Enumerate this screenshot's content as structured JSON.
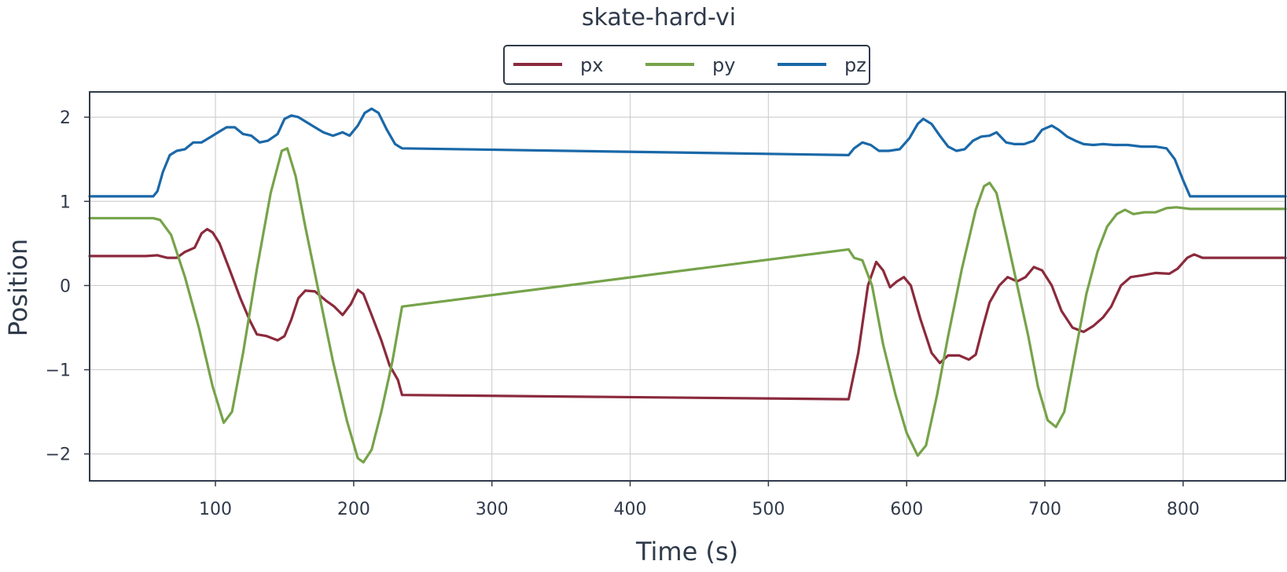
{
  "chart_data": {
    "type": "line",
    "title": "skate-hard-vi",
    "xlabel": "Time (s)",
    "ylabel": "Position",
    "xlim": [
      9,
      874
    ],
    "ylim": [
      -2.32,
      2.3
    ],
    "xticks": [
      100,
      200,
      300,
      400,
      500,
      600,
      700,
      800
    ],
    "xtick_labels": [
      "100",
      "200",
      "300",
      "400",
      "500",
      "600",
      "700",
      "800"
    ],
    "yticks": [
      -2,
      -1,
      0,
      1,
      2
    ],
    "ytick_labels": [
      "−2",
      "−1",
      "0",
      "1",
      "2"
    ],
    "grid": true,
    "legend": {
      "position": "top-center",
      "entries": [
        "px",
        "py",
        "pz"
      ]
    },
    "series": [
      {
        "name": "px",
        "color": "#8b2a3c",
        "points": [
          [
            9,
            0.35
          ],
          [
            50,
            0.35
          ],
          [
            58,
            0.36
          ],
          [
            65,
            0.33
          ],
          [
            72,
            0.33
          ],
          [
            78,
            0.4
          ],
          [
            85,
            0.45
          ],
          [
            90,
            0.62
          ],
          [
            94,
            0.67
          ],
          [
            98,
            0.63
          ],
          [
            103,
            0.5
          ],
          [
            110,
            0.2
          ],
          [
            118,
            -0.15
          ],
          [
            125,
            -0.42
          ],
          [
            130,
            -0.58
          ],
          [
            137,
            -0.6
          ],
          [
            145,
            -0.65
          ],
          [
            150,
            -0.6
          ],
          [
            155,
            -0.4
          ],
          [
            160,
            -0.15
          ],
          [
            165,
            -0.06
          ],
          [
            172,
            -0.07
          ],
          [
            180,
            -0.18
          ],
          [
            186,
            -0.25
          ],
          [
            192,
            -0.35
          ],
          [
            198,
            -0.22
          ],
          [
            203,
            -0.05
          ],
          [
            207,
            -0.1
          ],
          [
            213,
            -0.35
          ],
          [
            220,
            -0.65
          ],
          [
            226,
            -0.95
          ],
          [
            232,
            -1.12
          ],
          [
            235,
            -1.3
          ],
          [
            558,
            -1.35
          ],
          [
            565,
            -0.8
          ],
          [
            572,
            0.0
          ],
          [
            578,
            0.28
          ],
          [
            583,
            0.18
          ],
          [
            588,
            -0.02
          ],
          [
            593,
            0.05
          ],
          [
            598,
            0.1
          ],
          [
            603,
            0.0
          ],
          [
            610,
            -0.4
          ],
          [
            618,
            -0.8
          ],
          [
            624,
            -0.92
          ],
          [
            630,
            -0.83
          ],
          [
            638,
            -0.83
          ],
          [
            645,
            -0.88
          ],
          [
            650,
            -0.82
          ],
          [
            655,
            -0.5
          ],
          [
            660,
            -0.2
          ],
          [
            667,
            0.0
          ],
          [
            673,
            0.1
          ],
          [
            680,
            0.05
          ],
          [
            686,
            0.1
          ],
          [
            692,
            0.22
          ],
          [
            698,
            0.18
          ],
          [
            705,
            0.0
          ],
          [
            712,
            -0.3
          ],
          [
            720,
            -0.5
          ],
          [
            728,
            -0.55
          ],
          [
            735,
            -0.48
          ],
          [
            742,
            -0.38
          ],
          [
            748,
            -0.25
          ],
          [
            755,
            0.0
          ],
          [
            762,
            0.1
          ],
          [
            770,
            0.12
          ],
          [
            780,
            0.15
          ],
          [
            790,
            0.14
          ],
          [
            796,
            0.2
          ],
          [
            803,
            0.33
          ],
          [
            808,
            0.37
          ],
          [
            814,
            0.33
          ],
          [
            874,
            0.33
          ]
        ]
      },
      {
        "name": "py",
        "color": "#76a34a",
        "points": [
          [
            9,
            0.8
          ],
          [
            55,
            0.8
          ],
          [
            60,
            0.78
          ],
          [
            68,
            0.6
          ],
          [
            78,
            0.1
          ],
          [
            88,
            -0.5
          ],
          [
            98,
            -1.2
          ],
          [
            106,
            -1.63
          ],
          [
            112,
            -1.5
          ],
          [
            120,
            -0.8
          ],
          [
            130,
            0.2
          ],
          [
            140,
            1.1
          ],
          [
            148,
            1.6
          ],
          [
            152,
            1.63
          ],
          [
            158,
            1.3
          ],
          [
            165,
            0.7
          ],
          [
            175,
            -0.1
          ],
          [
            185,
            -0.9
          ],
          [
            195,
            -1.6
          ],
          [
            203,
            -2.05
          ],
          [
            207,
            -2.1
          ],
          [
            213,
            -1.95
          ],
          [
            220,
            -1.5
          ],
          [
            228,
            -0.9
          ],
          [
            235,
            -0.25
          ],
          [
            558,
            0.43
          ],
          [
            562,
            0.33
          ],
          [
            568,
            0.3
          ],
          [
            575,
            0.0
          ],
          [
            583,
            -0.7
          ],
          [
            592,
            -1.3
          ],
          [
            600,
            -1.75
          ],
          [
            608,
            -2.02
          ],
          [
            614,
            -1.9
          ],
          [
            622,
            -1.3
          ],
          [
            630,
            -0.6
          ],
          [
            640,
            0.2
          ],
          [
            650,
            0.9
          ],
          [
            656,
            1.18
          ],
          [
            660,
            1.22
          ],
          [
            665,
            1.1
          ],
          [
            672,
            0.6
          ],
          [
            680,
            0.0
          ],
          [
            688,
            -0.6
          ],
          [
            695,
            -1.2
          ],
          [
            702,
            -1.6
          ],
          [
            708,
            -1.68
          ],
          [
            714,
            -1.5
          ],
          [
            722,
            -0.8
          ],
          [
            730,
            -0.1
          ],
          [
            738,
            0.4
          ],
          [
            745,
            0.7
          ],
          [
            752,
            0.85
          ],
          [
            758,
            0.9
          ],
          [
            764,
            0.85
          ],
          [
            772,
            0.87
          ],
          [
            780,
            0.87
          ],
          [
            788,
            0.92
          ],
          [
            795,
            0.93
          ],
          [
            805,
            0.91
          ],
          [
            874,
            0.91
          ]
        ]
      },
      {
        "name": "pz",
        "color": "#1a68a8",
        "points": [
          [
            9,
            1.06
          ],
          [
            55,
            1.06
          ],
          [
            58,
            1.12
          ],
          [
            62,
            1.35
          ],
          [
            67,
            1.55
          ],
          [
            72,
            1.6
          ],
          [
            78,
            1.62
          ],
          [
            84,
            1.7
          ],
          [
            90,
            1.7
          ],
          [
            96,
            1.76
          ],
          [
            102,
            1.82
          ],
          [
            108,
            1.88
          ],
          [
            114,
            1.88
          ],
          [
            120,
            1.8
          ],
          [
            126,
            1.78
          ],
          [
            132,
            1.7
          ],
          [
            138,
            1.72
          ],
          [
            145,
            1.8
          ],
          [
            150,
            1.98
          ],
          [
            155,
            2.02
          ],
          [
            160,
            2.0
          ],
          [
            165,
            1.95
          ],
          [
            172,
            1.88
          ],
          [
            178,
            1.82
          ],
          [
            185,
            1.78
          ],
          [
            192,
            1.82
          ],
          [
            197,
            1.78
          ],
          [
            203,
            1.9
          ],
          [
            208,
            2.05
          ],
          [
            213,
            2.1
          ],
          [
            218,
            2.05
          ],
          [
            224,
            1.85
          ],
          [
            230,
            1.68
          ],
          [
            235,
            1.63
          ],
          [
            558,
            1.55
          ],
          [
            562,
            1.63
          ],
          [
            568,
            1.7
          ],
          [
            574,
            1.67
          ],
          [
            580,
            1.6
          ],
          [
            587,
            1.6
          ],
          [
            595,
            1.62
          ],
          [
            602,
            1.75
          ],
          [
            608,
            1.92
          ],
          [
            612,
            1.98
          ],
          [
            618,
            1.92
          ],
          [
            624,
            1.78
          ],
          [
            630,
            1.65
          ],
          [
            636,
            1.6
          ],
          [
            642,
            1.62
          ],
          [
            648,
            1.72
          ],
          [
            654,
            1.77
          ],
          [
            660,
            1.78
          ],
          [
            665,
            1.82
          ],
          [
            672,
            1.7
          ],
          [
            678,
            1.68
          ],
          [
            685,
            1.68
          ],
          [
            692,
            1.72
          ],
          [
            698,
            1.85
          ],
          [
            705,
            1.9
          ],
          [
            710,
            1.85
          ],
          [
            716,
            1.77
          ],
          [
            722,
            1.72
          ],
          [
            728,
            1.68
          ],
          [
            735,
            1.67
          ],
          [
            742,
            1.68
          ],
          [
            750,
            1.67
          ],
          [
            760,
            1.67
          ],
          [
            770,
            1.65
          ],
          [
            780,
            1.65
          ],
          [
            788,
            1.63
          ],
          [
            794,
            1.5
          ],
          [
            800,
            1.25
          ],
          [
            805,
            1.06
          ],
          [
            874,
            1.06
          ]
        ]
      }
    ]
  }
}
